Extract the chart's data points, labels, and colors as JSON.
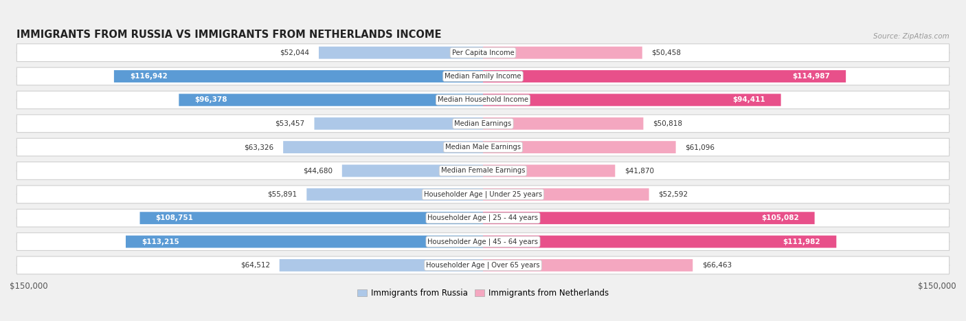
{
  "title": "IMMIGRANTS FROM RUSSIA VS IMMIGRANTS FROM NETHERLANDS INCOME",
  "source": "Source: ZipAtlas.com",
  "categories": [
    "Per Capita Income",
    "Median Family Income",
    "Median Household Income",
    "Median Earnings",
    "Median Male Earnings",
    "Median Female Earnings",
    "Householder Age | Under 25 years",
    "Householder Age | 25 - 44 years",
    "Householder Age | 45 - 64 years",
    "Householder Age | Over 65 years"
  ],
  "russia_values": [
    52044,
    116942,
    96378,
    53457,
    63326,
    44680,
    55891,
    108751,
    113215,
    64512
  ],
  "netherlands_values": [
    50458,
    114987,
    94411,
    50818,
    61096,
    41870,
    52592,
    105082,
    111982,
    66463
  ],
  "russia_labels": [
    "$52,044",
    "$116,942",
    "$96,378",
    "$53,457",
    "$63,326",
    "$44,680",
    "$55,891",
    "$108,751",
    "$113,215",
    "$64,512"
  ],
  "netherlands_labels": [
    "$50,458",
    "$114,987",
    "$94,411",
    "$50,818",
    "$61,096",
    "$41,870",
    "$52,592",
    "$105,082",
    "$111,982",
    "$66,463"
  ],
  "russia_color_light": "#adc8e8",
  "russia_color_dark": "#5b9bd5",
  "netherlands_color_light": "#f4a7c0",
  "netherlands_color_dark": "#e8508a",
  "max_value": 150000,
  "legend_russia": "Immigrants from Russia",
  "legend_netherlands": "Immigrants from Netherlands",
  "background_color": "#f0f0f0",
  "row_bg_color": "#ffffff",
  "label_threshold": 85000
}
